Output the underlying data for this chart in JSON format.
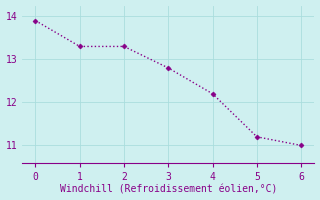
{
  "x": [
    0,
    1,
    2,
    3,
    4,
    5,
    6
  ],
  "y": [
    13.9,
    13.3,
    13.3,
    12.8,
    12.2,
    11.2,
    11.0
  ],
  "line_color": "#880088",
  "marker": "D",
  "marker_size": 2.5,
  "xlabel": "Windchill (Refroidissement éolien,°C)",
  "xlim": [
    -0.3,
    6.3
  ],
  "ylim": [
    10.6,
    14.25
  ],
  "yticks": [
    11,
    12,
    13,
    14
  ],
  "xticks": [
    0,
    1,
    2,
    3,
    4,
    5,
    6
  ],
  "background_color": "#cff0f0",
  "grid_color": "#aadddd",
  "xlabel_color": "#880088",
  "tick_color": "#880088",
  "label_fontsize": 7,
  "tick_fontsize": 7
}
